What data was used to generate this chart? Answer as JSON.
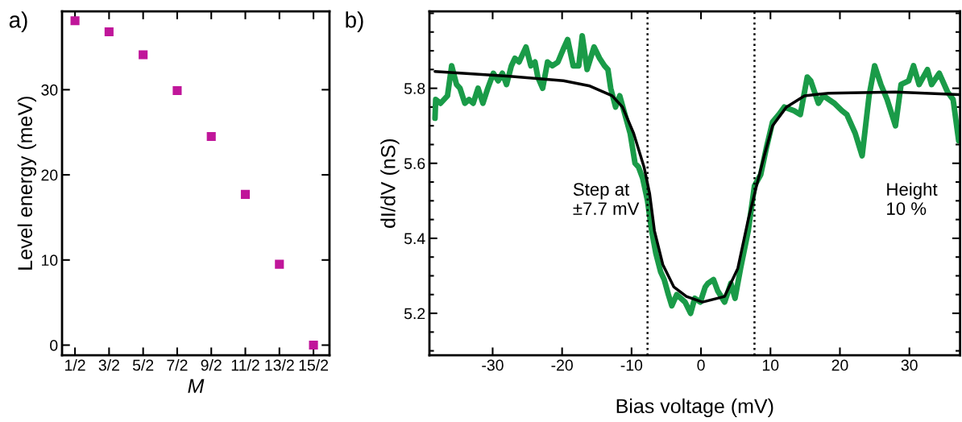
{
  "chart_data": [
    {
      "type": "scatter",
      "ylabel": "Level energy (meV)",
      "xlabel": "M",
      "categories": [
        "1/2",
        "3/2",
        "5/2",
        "7/2",
        "9/2",
        "11/2",
        "13/2",
        "15/2"
      ],
      "annotations": [
        "a)"
      ],
      "series": [
        {
          "color": "#c0169a",
          "marker": "square",
          "values": [
            38.1,
            36.8,
            34.1,
            29.9,
            24.5,
            17.7,
            9.5,
            0
          ]
        }
      ],
      "ylim": [
        -1.2,
        39.2
      ],
      "yticks": [
        0,
        10,
        20,
        30
      ],
      "grid": false,
      "legend": false
    },
    {
      "type": "line",
      "xlabel": "Bias voltage (mV)",
      "ylabel": "dI/dV (nS)",
      "annotations": [
        "b)",
        "Step at\n±7.7 mV",
        "Height\n10 %"
      ],
      "series": [
        {
          "color": "#1a9b48",
          "x": [
            -38.3,
            -38.2,
            -37.5,
            -36.5,
            -35.9,
            -35.2,
            -34.7,
            -34.0,
            -33.4,
            -32.8,
            -32.1,
            -31.4,
            -30.7,
            -29.9,
            -29.2,
            -28.6,
            -28.0,
            -27.3,
            -26.8,
            -26.2,
            -25.2,
            -24.5,
            -23.9,
            -23.5,
            -22.8,
            -22.1,
            -21.4,
            -20.6,
            -19.7,
            -19.2,
            -18.4,
            -17.6,
            -17.1,
            -16.4,
            -15.4,
            -14.6,
            -13.9,
            -13.4,
            -13.0,
            -12.3,
            -11.7,
            -11.1,
            -10.2,
            -9.5,
            -9.0,
            -8.4,
            -7.7,
            -7.1,
            -6.5,
            -5.8,
            -5.3,
            -4.7,
            -4.2,
            -3.5,
            -2.9,
            -2.3,
            -1.5,
            -0.9,
            -0.1,
            0.6,
            1.0,
            1.8,
            2.4,
            3.4,
            4.3,
            4.9,
            5.7,
            6.8,
            7.7,
            8.6,
            9.4,
            10.3,
            11.2,
            12.0,
            13.4,
            14.3,
            15.3,
            15.8,
            16.9,
            17.6,
            19.2,
            20.3,
            21.0,
            22.2,
            23.2,
            24.2,
            25.0,
            25.9,
            26.8,
            28.0,
            28.8,
            29.9,
            30.6,
            31.4,
            32.6,
            33.2,
            34.3,
            35.5,
            36.3,
            37.1
          ],
          "values": [
            5.72,
            5.77,
            5.76,
            5.78,
            5.86,
            5.81,
            5.8,
            5.76,
            5.77,
            5.76,
            5.8,
            5.76,
            5.8,
            5.84,
            5.82,
            5.84,
            5.81,
            5.86,
            5.88,
            5.87,
            5.91,
            5.86,
            5.87,
            5.83,
            5.8,
            5.87,
            5.86,
            5.87,
            5.91,
            5.93,
            5.86,
            5.86,
            5.94,
            5.85,
            5.91,
            5.88,
            5.86,
            5.85,
            5.8,
            5.75,
            5.78,
            5.74,
            5.68,
            5.6,
            5.59,
            5.56,
            5.5,
            5.42,
            5.36,
            5.31,
            5.29,
            5.25,
            5.22,
            5.25,
            5.24,
            5.23,
            5.2,
            5.24,
            5.23,
            5.27,
            5.28,
            5.29,
            5.26,
            5.23,
            5.28,
            5.24,
            5.32,
            5.42,
            5.54,
            5.57,
            5.64,
            5.71,
            5.73,
            5.75,
            5.74,
            5.73,
            5.83,
            5.82,
            5.76,
            5.78,
            5.76,
            5.74,
            5.73,
            5.68,
            5.62,
            5.78,
            5.86,
            5.81,
            5.77,
            5.7,
            5.81,
            5.82,
            5.86,
            5.81,
            5.85,
            5.81,
            5.84,
            5.79,
            5.77,
            5.66
          ]
        },
        {
          "color": "#000000",
          "x": [
            -38.3,
            -27.5,
            -19.8,
            -16.0,
            -12.8,
            -11.3,
            -9.7,
            -8.2,
            -7.4,
            -6.7,
            -5.5,
            -3.9,
            -2.1,
            0.2,
            3.4,
            5.3,
            6.8,
            8.0,
            9.1,
            10.3,
            12.3,
            14.9,
            18.4,
            28.0,
            37.2
          ],
          "values": [
            5.845,
            5.832,
            5.82,
            5.806,
            5.78,
            5.75,
            5.68,
            5.59,
            5.52,
            5.42,
            5.33,
            5.27,
            5.245,
            5.23,
            5.245,
            5.32,
            5.45,
            5.54,
            5.62,
            5.7,
            5.75,
            5.78,
            5.787,
            5.79,
            5.783
          ]
        }
      ],
      "ref_lines": [
        {
          "axis": "x",
          "value": -7.7,
          "color": "#000000",
          "line_style": "dotted"
        },
        {
          "axis": "x",
          "value": 7.7,
          "color": "#000000",
          "line_style": "dotted"
        }
      ],
      "xlim": [
        -39.1,
        37.3
      ],
      "xticks": [
        -30,
        -20,
        -10,
        0,
        10,
        20,
        30
      ],
      "ylim": [
        5.088,
        6.005
      ],
      "yticks": [
        5.2,
        5.4,
        5.6,
        5.8
      ],
      "grid": false,
      "legend": false
    }
  ]
}
